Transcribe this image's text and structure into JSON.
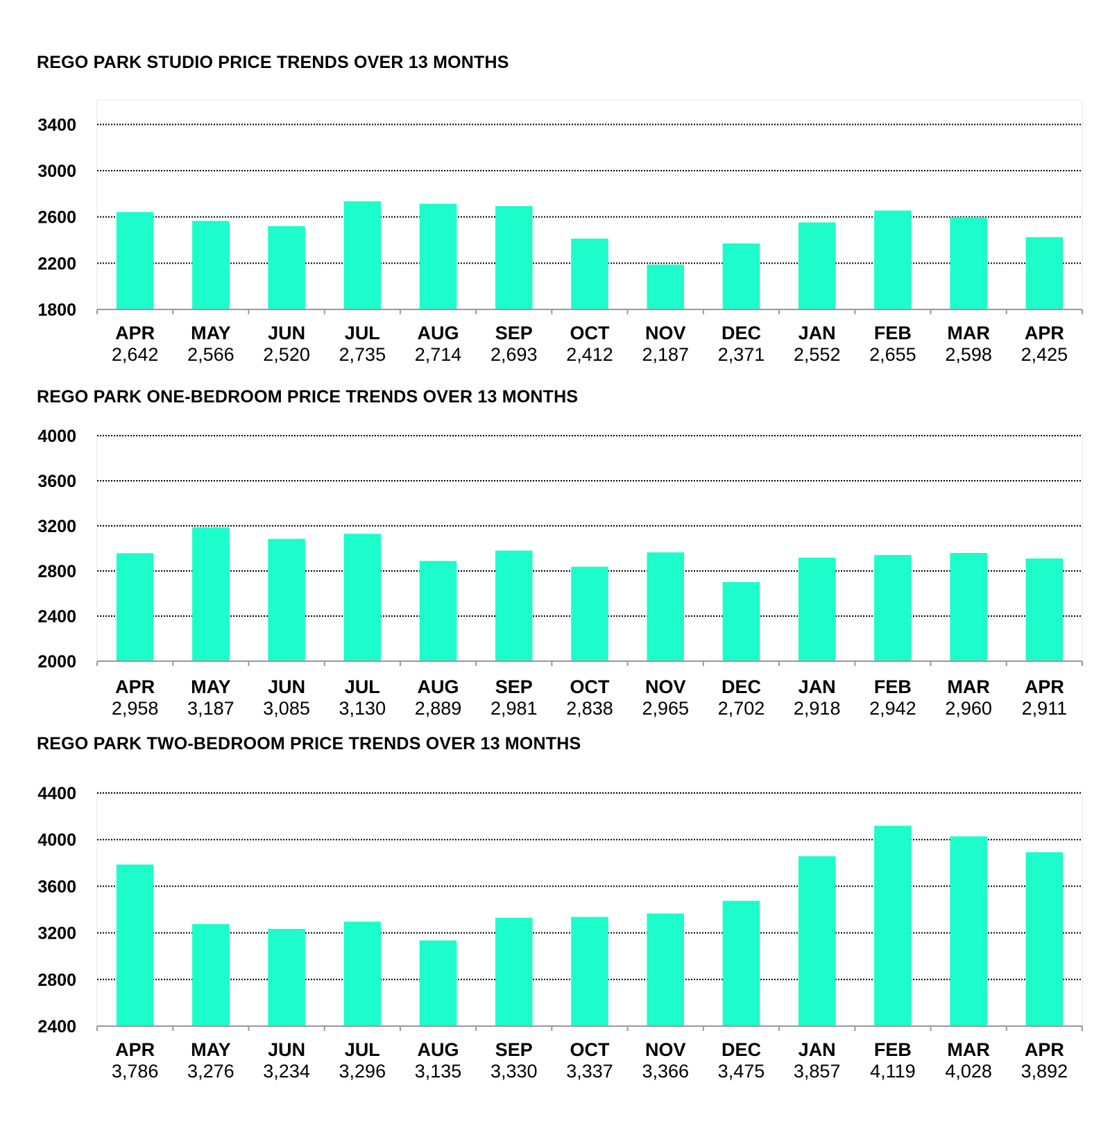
{
  "colors": {
    "bar": "#1dfccb",
    "grid": "#000000",
    "axis": "#999999"
  },
  "chart_data": [
    {
      "type": "bar",
      "title": "REGO PARK STUDIO PRICE TRENDS OVER 13 MONTHS",
      "xlabel": "",
      "ylabel": "",
      "categories": [
        "APR",
        "MAY",
        "JUN",
        "JUL",
        "AUG",
        "SEP",
        "OCT",
        "NOV",
        "DEC",
        "JAN",
        "FEB",
        "MAR",
        "APR"
      ],
      "value_labels": [
        "2,642",
        "2,566",
        "2,520",
        "2,735",
        "2,714",
        "2,693",
        "2,412",
        "2,187",
        "2,371",
        "2,552",
        "2,655",
        "2,598",
        "2,425"
      ],
      "values": [
        2642,
        2566,
        2520,
        2735,
        2714,
        2693,
        2412,
        2187,
        2371,
        2552,
        2655,
        2598,
        2425
      ],
      "yticks": [
        "1800",
        "2200",
        "2600",
        "3000",
        "3400"
      ],
      "ylim": [
        1800,
        3600
      ],
      "grid": true,
      "grid_style": "dotted",
      "legend": "none"
    },
    {
      "type": "bar",
      "title": "REGO PARK ONE-BEDROOM PRICE TRENDS OVER 13 MONTHS",
      "xlabel": "",
      "ylabel": "",
      "categories": [
        "APR",
        "MAY",
        "JUN",
        "JUL",
        "AUG",
        "SEP",
        "OCT",
        "NOV",
        "DEC",
        "JAN",
        "FEB",
        "MAR",
        "APR"
      ],
      "value_labels": [
        "2,958",
        "3,187",
        "3,085",
        "3,130",
        "2,889",
        "2,981",
        "2,838",
        "2,965",
        "2,702",
        "2,918",
        "2,942",
        "2,960",
        "2,911"
      ],
      "values": [
        2958,
        3187,
        3085,
        3130,
        2889,
        2981,
        2838,
        2965,
        2702,
        2918,
        2942,
        2960,
        2911
      ],
      "yticks": [
        "2000",
        "2400",
        "2800",
        "3200",
        "3600",
        "4000"
      ],
      "ylim": [
        2000,
        4000
      ],
      "grid": true,
      "grid_style": "dotted",
      "legend": "none"
    },
    {
      "type": "bar",
      "title": "REGO PARK TWO-BEDROOM PRICE TRENDS OVER 13 MONTHS",
      "xlabel": "",
      "ylabel": "",
      "categories": [
        "APR",
        "MAY",
        "JUN",
        "JUL",
        "AUG",
        "SEP",
        "OCT",
        "NOV",
        "DEC",
        "JAN",
        "FEB",
        "MAR",
        "APR"
      ],
      "value_labels": [
        "3,786",
        "3,276",
        "3,234",
        "3,296",
        "3,135",
        "3,330",
        "3,337",
        "3,366",
        "3,475",
        "3,857",
        "4,119",
        "4,028",
        "3,892"
      ],
      "values": [
        3786,
        3276,
        3234,
        3296,
        3135,
        3330,
        3337,
        3366,
        3475,
        3857,
        4119,
        4028,
        3892
      ],
      "yticks": [
        "2400",
        "2800",
        "3200",
        "3600",
        "4000",
        "4400"
      ],
      "ylim": [
        2400,
        4400
      ],
      "grid": true,
      "grid_style": "dotted",
      "legend": "none"
    }
  ]
}
